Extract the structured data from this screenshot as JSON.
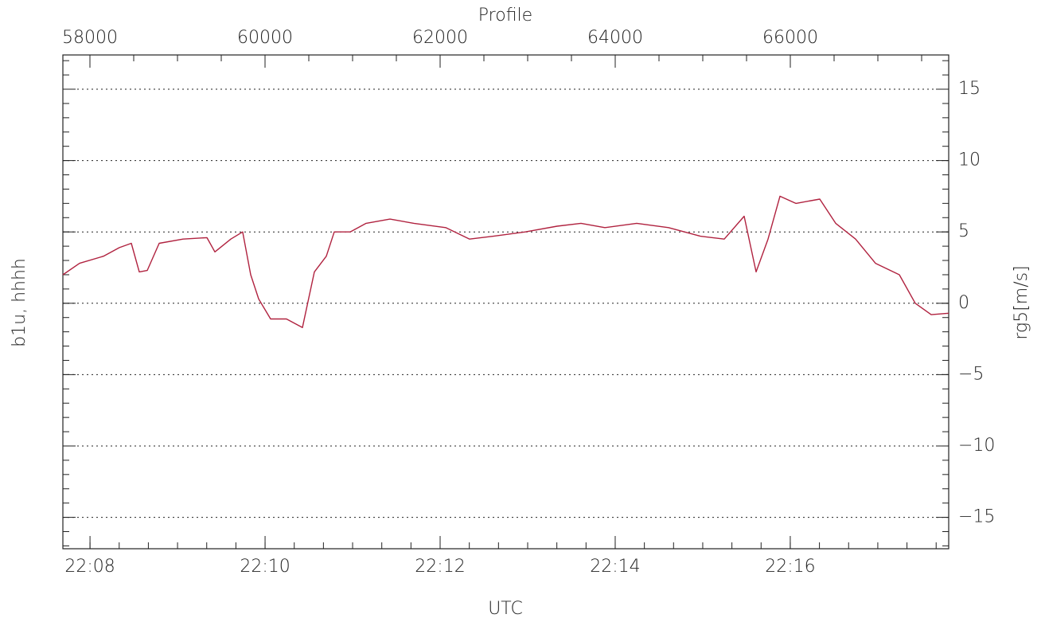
{
  "chart_data": {
    "type": "line",
    "title": "Profile",
    "xlabel": "UTC",
    "ylabel": "b1u, hhhh",
    "y2label": "rg5[m/s]",
    "x": [
      57691,
      57882,
      58155,
      58336,
      58473,
      58564,
      58655,
      58791,
      59064,
      59336,
      59427,
      59609,
      59745,
      59836,
      59927,
      60064,
      60245,
      60427,
      60564,
      60700,
      60791,
      60973,
      61155,
      61427,
      61700,
      62064,
      62336,
      62609,
      62973,
      63336,
      63609,
      63882,
      64245,
      64609,
      64973,
      65245,
      65473,
      65609,
      65745,
      65882,
      66064,
      66336,
      66518,
      66745,
      66973,
      67245,
      67427,
      67609,
      67809
    ],
    "series": [
      {
        "name": "rg5",
        "color": "#b0223f",
        "axis": "y2",
        "values": [
          2.0,
          2.8,
          3.3,
          3.9,
          4.2,
          2.2,
          2.3,
          4.2,
          4.5,
          4.6,
          3.6,
          4.5,
          5.0,
          2.0,
          0.3,
          -1.1,
          -1.1,
          -1.7,
          2.2,
          3.3,
          5.0,
          5.0,
          5.6,
          5.9,
          5.6,
          5.3,
          4.5,
          4.7,
          5.0,
          5.4,
          5.6,
          5.3,
          5.6,
          5.3,
          4.7,
          4.5,
          6.1,
          2.2,
          4.5,
          7.5,
          7.0,
          7.3,
          5.6,
          4.5,
          2.8,
          2.0,
          0,
          -0.8,
          -0.7
        ]
      }
    ],
    "xlim": [
      57691,
      67809
    ],
    "xticks": [
      58000,
      60000,
      62000,
      64000,
      66000
    ],
    "x2lim": [
      1327.69,
      1337.81
    ],
    "x2ticks": [
      {
        "value": 1328,
        "label": "22:08"
      },
      {
        "value": 1330,
        "label": "22:10"
      },
      {
        "value": 1332,
        "label": "22:12"
      },
      {
        "value": 1334,
        "label": "22:14"
      },
      {
        "value": 1336,
        "label": "22:16"
      }
    ],
    "y2lim": [
      -17.2,
      17.4
    ],
    "y2ticks": [
      {
        "value": 15,
        "label": "15"
      },
      {
        "value": 10,
        "label": "10"
      },
      {
        "value": 5,
        "label": "5"
      },
      {
        "value": 0,
        "label": "0"
      },
      {
        "value": -5,
        "label": "−5"
      },
      {
        "value": -10,
        "label": "−10"
      },
      {
        "value": -15,
        "label": "−15"
      }
    ],
    "grid": true
  }
}
